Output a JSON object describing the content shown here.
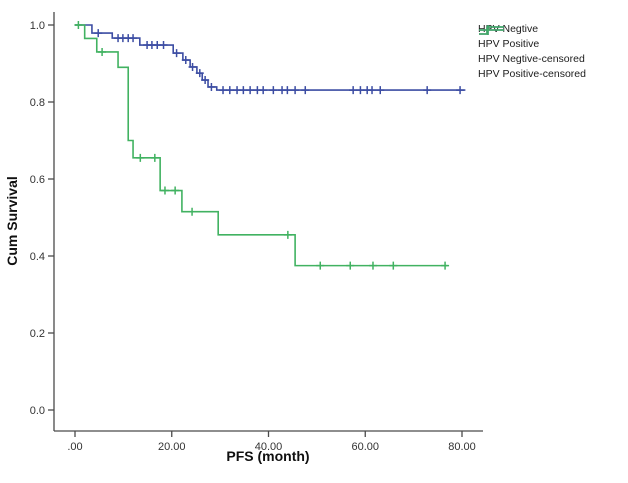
{
  "chart_data": {
    "type": "line",
    "subtype": "kaplan-meier-step-survival",
    "title": "",
    "xlabel": "PFS (month)",
    "ylabel": "Cum Survival",
    "xlim": [
      0,
      84
    ],
    "ylim": [
      0,
      1.0
    ],
    "grid": false,
    "legend_position": "top-right-outside",
    "x_ticks": [
      {
        "value": 0,
        "label": ".00"
      },
      {
        "value": 20,
        "label": "20.00"
      },
      {
        "value": 40,
        "label": "40.00"
      },
      {
        "value": 60,
        "label": "60.00"
      },
      {
        "value": 80,
        "label": "80.00"
      }
    ],
    "y_ticks": [
      {
        "value": 0.0,
        "label": "0.0"
      },
      {
        "value": 0.2,
        "label": "0.2"
      },
      {
        "value": 0.4,
        "label": "0.4"
      },
      {
        "value": 0.6,
        "label": "0.6"
      },
      {
        "value": 0.8,
        "label": "0.8"
      },
      {
        "value": 1.0,
        "label": "1.0"
      }
    ],
    "series": [
      {
        "name": "HPV Negtive",
        "color": "#3c4da3",
        "step_x": [
          0,
          3.5,
          7.7,
          13.4,
          20.3,
          22.3,
          23.8,
          25.2,
          26.3,
          27.5,
          29.3
        ],
        "step_y": [
          1.0,
          0.979,
          0.966,
          0.948,
          0.927,
          0.909,
          0.891,
          0.875,
          0.857,
          0.839,
          0.831
        ],
        "end_x": 80.7,
        "censored_x": [
          4.8,
          8.9,
          9.9,
          11.0,
          12.0,
          14.9,
          15.9,
          17.0,
          18.3,
          21.0,
          22.9,
          24.3,
          25.8,
          26.9,
          28.2,
          30.6,
          32.0,
          33.5,
          34.8,
          36.2,
          37.7,
          38.9,
          41.0,
          42.8,
          43.9,
          45.5,
          47.6,
          57.5,
          59.0,
          60.4,
          61.4,
          63.1,
          72.8,
          79.6
        ]
      },
      {
        "name": "HPV Positive",
        "color": "#41b261",
        "step_x": [
          0,
          2.0,
          4.5,
          8.9,
          11.0,
          12.0,
          17.6,
          22.1,
          29.6,
          45.5
        ],
        "step_y": [
          1.0,
          0.965,
          0.93,
          0.89,
          0.7,
          0.655,
          0.57,
          0.515,
          0.455,
          0.375
        ],
        "end_x": 77.0,
        "censored_x": [
          0.7,
          5.6,
          13.5,
          16.5,
          18.6,
          20.7,
          24.2,
          44.0,
          50.7,
          56.9,
          61.6,
          65.8,
          76.5
        ]
      }
    ],
    "legend": {
      "items": [
        {
          "label": "HPV Negtive",
          "type": "step",
          "color": "#3c4da3"
        },
        {
          "label": "HPV Positive",
          "type": "step",
          "color": "#41b261"
        },
        {
          "label": "HPV Negtive-censored",
          "type": "censored",
          "color": "#3c4da3"
        },
        {
          "label": "HPV Positive-censored",
          "type": "censored",
          "color": "#41b261"
        }
      ]
    }
  }
}
